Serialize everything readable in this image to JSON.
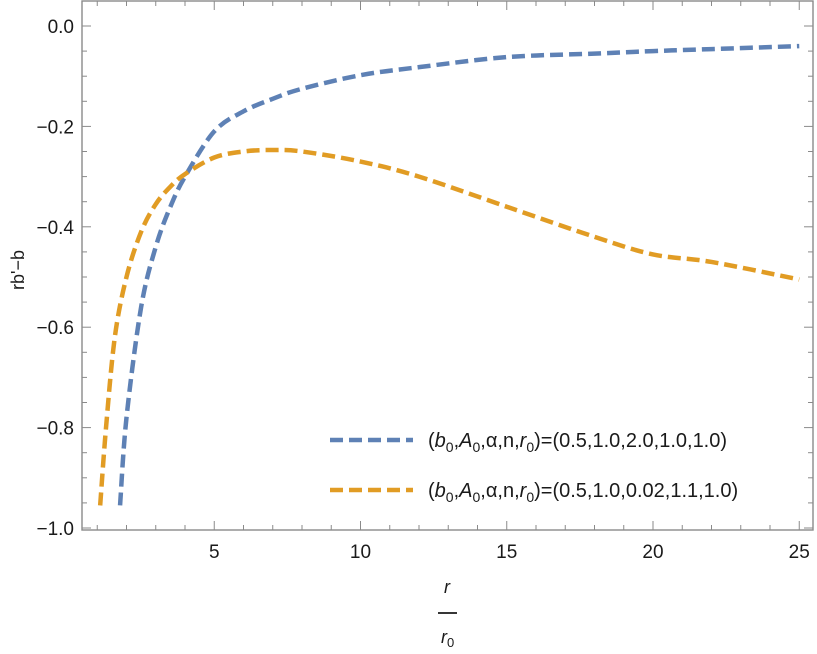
{
  "chart_data": {
    "type": "line",
    "title": "",
    "xlabel": "r / r0",
    "xlabel_numerator": "r",
    "xlabel_denominator": "r",
    "xlabel_denominator_sub": "0",
    "ylabel": "rb'−b",
    "xlim": [
      0.5,
      25.5
    ],
    "ylim": [
      -1.0,
      0.05
    ],
    "x_ticks": [
      5,
      10,
      15,
      20,
      25
    ],
    "x_tick_labels": [
      "5",
      "10",
      "15",
      "20",
      "25"
    ],
    "y_ticks": [
      0.0,
      -0.2,
      -0.4,
      -0.6,
      -0.8,
      -1.0
    ],
    "y_tick_labels": [
      "0.0",
      "−0.2",
      "−0.4",
      "−0.6",
      "−0.8",
      "−1.0"
    ],
    "grid": false,
    "legend_position": "lower right (inside)",
    "series": [
      {
        "name": "(b0,A0,α,n,r0)=(0.5,1.0,2.0,1.0,1.0)",
        "color": "#5E81B5",
        "style": "dashed",
        "x": [
          1.78,
          2.0,
          2.5,
          3.0,
          3.5,
          4.0,
          5.0,
          6.0,
          7.0,
          8.0,
          10.0,
          12.0,
          15.0,
          18.0,
          20.0,
          22.0,
          25.0
        ],
        "y": [
          -0.955,
          -0.78,
          -0.56,
          -0.44,
          -0.36,
          -0.3,
          -0.21,
          -0.17,
          -0.145,
          -0.125,
          -0.098,
          -0.082,
          -0.062,
          -0.055,
          -0.05,
          -0.046,
          -0.04
        ]
      },
      {
        "name": "(b0,A0,α,n,r0)=(0.5,1.0,0.02,1.1,1.0)",
        "color": "#E19C24",
        "style": "dashed",
        "x": [
          1.1,
          1.3,
          1.6,
          2.0,
          2.5,
          3.0,
          3.5,
          4.0,
          5.0,
          6.0,
          7.0,
          8.0,
          10.0,
          12.0,
          15.0,
          18.0,
          20.0,
          22.0,
          25.0
        ],
        "y": [
          -0.955,
          -0.8,
          -0.62,
          -0.5,
          -0.41,
          -0.355,
          -0.32,
          -0.295,
          -0.262,
          -0.25,
          -0.247,
          -0.25,
          -0.27,
          -0.3,
          -0.36,
          -0.42,
          -0.455,
          -0.47,
          -0.505
        ]
      }
    ]
  },
  "legend": {
    "items": [
      {
        "prefix": "(",
        "b": "b",
        "sub0": "0",
        "A": "A",
        "sub1": "0",
        "mid": ",α,n,",
        "r": "r",
        "sub2": "0",
        "values": ")=(0.5,1.0,2.0,1.0,1.0)",
        "color": "#5E81B5"
      },
      {
        "prefix": "(",
        "b": "b",
        "sub0": "0",
        "A": "A",
        "sub1": "0",
        "mid": ",α,n,",
        "r": "r",
        "sub2": "0",
        "values": ")=(0.5,1.0,0.02,1.1,1.0)",
        "color": "#E19C24"
      }
    ]
  }
}
